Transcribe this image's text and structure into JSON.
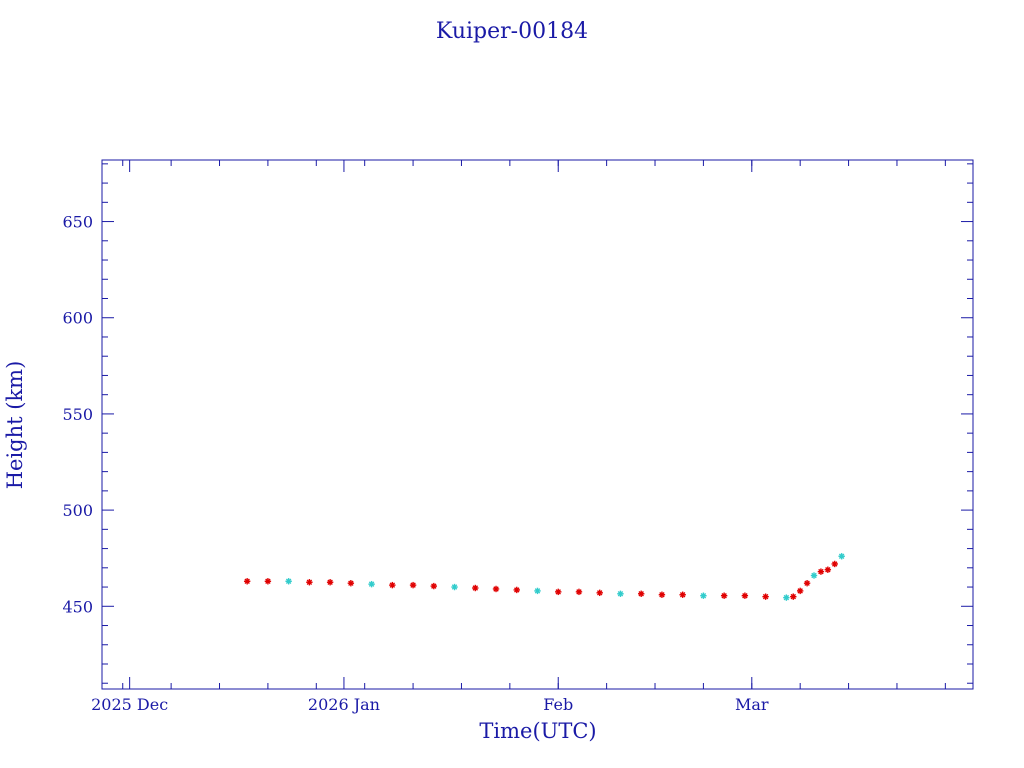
{
  "chart_data": {
    "type": "scatter",
    "title": "Kuiper-00184",
    "xlabel": "Time(UTC)",
    "ylabel": "Height (km)",
    "xlim": [
      "2025-11-27",
      "2026-04-02"
    ],
    "ylim": [
      407,
      682
    ],
    "y_ticks": [
      450,
      500,
      550,
      600,
      650
    ],
    "x_ticks": [
      {
        "date": "2025-12-01",
        "label": "2025 Dec"
      },
      {
        "date": "2026-01-01",
        "label": "2026 Jan"
      },
      {
        "date": "2026-02-01",
        "label": "Feb"
      },
      {
        "date": "2026-03-01",
        "label": "Mar"
      }
    ],
    "grid": false,
    "legend": "none",
    "colors": {
      "axis": "#1a1aa6",
      "series_primary": "#e00000",
      "series_secondary": "#33cccc"
    },
    "series": [
      {
        "marker": "asterisk",
        "color": "#e00000",
        "x": [
          "2025-12-18",
          "2025-12-21",
          "2025-12-24",
          "2025-12-27",
          "2025-12-30",
          "2026-01-02",
          "2026-01-05",
          "2026-01-08",
          "2026-01-11",
          "2026-01-14",
          "2026-01-17",
          "2026-01-20",
          "2026-01-23",
          "2026-01-26",
          "2026-01-29",
          "2026-02-01",
          "2026-02-04",
          "2026-02-07",
          "2026-02-10",
          "2026-02-13",
          "2026-02-16",
          "2026-02-19",
          "2026-02-22",
          "2026-02-25",
          "2026-02-28",
          "2026-03-03",
          "2026-03-06",
          "2026-03-07",
          "2026-03-08",
          "2026-03-09",
          "2026-03-10",
          "2026-03-11",
          "2026-03-12",
          "2026-03-13",
          "2026-03-14"
        ],
        "y": [
          463,
          463,
          463,
          462.5,
          462.5,
          462,
          461.5,
          461,
          461,
          460.5,
          460,
          459.5,
          459,
          458.5,
          458,
          457.5,
          457.5,
          457,
          456.5,
          456.5,
          456,
          456,
          455.5,
          455.5,
          455.5,
          455,
          454.5,
          455,
          458,
          462,
          466,
          468,
          469,
          472,
          476
        ]
      }
    ]
  }
}
